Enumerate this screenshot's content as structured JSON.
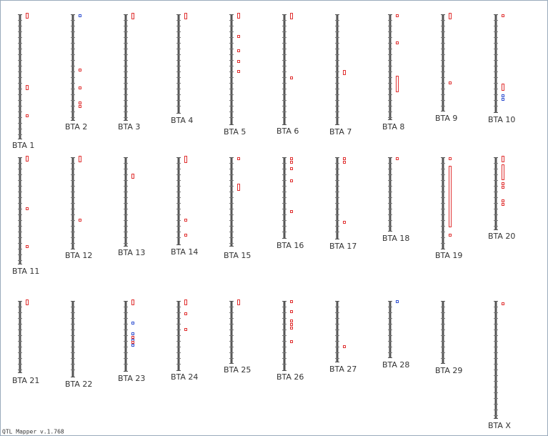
{
  "chromosomes": [
    "BTA 1",
    "BTA 2",
    "BTA 3",
    "BTA 4",
    "BTA 5",
    "BTA 6",
    "BTA 7",
    "BTA 8",
    "BTA 9",
    "BTA 10",
    "BTA 11",
    "BTA 12",
    "BTA 13",
    "BTA 14",
    "BTA 15",
    "BTA 16",
    "BTA 17",
    "BTA 18",
    "BTA 19",
    "BTA 20",
    "BTA 21",
    "BTA 22",
    "BTA 23",
    "BTA 24",
    "BTA 25",
    "BTA 26",
    "BTA 27",
    "BTA 28",
    "BTA 29",
    "BTA X"
  ],
  "footer": "QTL Mapper v.1.768"
}
